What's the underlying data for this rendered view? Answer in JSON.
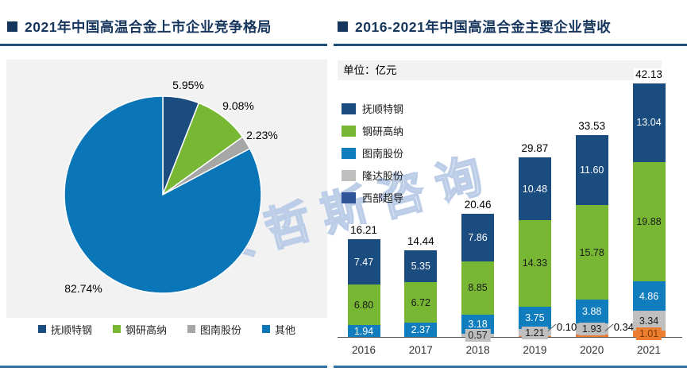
{
  "watermark": "贝哲斯咨询",
  "left_panel": {
    "title": "2021年中国高温合金上市企业竞争格局",
    "legend": [
      {
        "label": "抚顺特钢",
        "color": "#1A4C80"
      },
      {
        "label": "钢研高纳",
        "color": "#77B733"
      },
      {
        "label": "图南股份",
        "color": "#A6A6A6"
      },
      {
        "label": "其他",
        "color": "#0B76B7"
      }
    ]
  },
  "right_panel": {
    "title": "2016-2021年中国高温合金主要企业营收",
    "unit_label": "单位：亿元",
    "legend": [
      {
        "label": "抚顺特钢",
        "color": "#1A4C80"
      },
      {
        "label": "钢研高纳",
        "color": "#77B733"
      },
      {
        "label": "图南股份",
        "color": "#0F7DBE"
      },
      {
        "label": "隆达股份",
        "color": "#BFBFBF"
      },
      {
        "label": "西部超导",
        "color": "#2E5597"
      }
    ]
  },
  "chart_data": [
    {
      "type": "pie",
      "title": "2021年中国高温合金上市企业竞争格局",
      "labels": [
        "抚顺特钢",
        "钢研高纳",
        "图南股份",
        "其他"
      ],
      "values": [
        5.95,
        9.08,
        2.23,
        82.74
      ],
      "unit": "%",
      "colors": [
        "#1A4C80",
        "#77B733",
        "#A6A6A6",
        "#0B76B7"
      ],
      "start_angle_deg": 0,
      "direction": "clockwise",
      "legend_position": "bottom"
    },
    {
      "type": "bar",
      "stacked": true,
      "title": "2016-2021年中国高温合金主要企业营收",
      "unit": "亿元",
      "categories": [
        "2016",
        "2017",
        "2018",
        "2019",
        "2020",
        "2021"
      ],
      "series": [
        {
          "name": "抚顺特钢",
          "color": "#1A4C80",
          "legend_color": "#1A4C80",
          "values": [
            7.47,
            5.35,
            7.86,
            10.48,
            11.6,
            13.04
          ]
        },
        {
          "name": "钢研高纳",
          "color": "#77B733",
          "legend_color": "#77B733",
          "values": [
            6.8,
            6.72,
            8.85,
            14.33,
            15.78,
            19.88
          ]
        },
        {
          "name": "图南股份",
          "color": "#0F7DBE",
          "legend_color": "#0F7DBE",
          "values": [
            1.94,
            2.37,
            3.18,
            3.75,
            3.88,
            4.86
          ]
        },
        {
          "name": "隆达股份",
          "color": "#BFBFBF",
          "legend_color": "#BFBFBF",
          "values": [
            null,
            null,
            0.57,
            1.21,
            1.93,
            3.34
          ]
        },
        {
          "name": "西部超导",
          "color": "#ED7D31",
          "legend_color": "#2E5597",
          "values": [
            null,
            null,
            null,
            0.1,
            0.34,
            1.01
          ]
        }
      ],
      "totals": [
        16.21,
        14.44,
        20.46,
        29.87,
        33.53,
        42.13
      ],
      "ylim": [
        0,
        45
      ],
      "grid": false,
      "legend_position": "top-left"
    }
  ]
}
